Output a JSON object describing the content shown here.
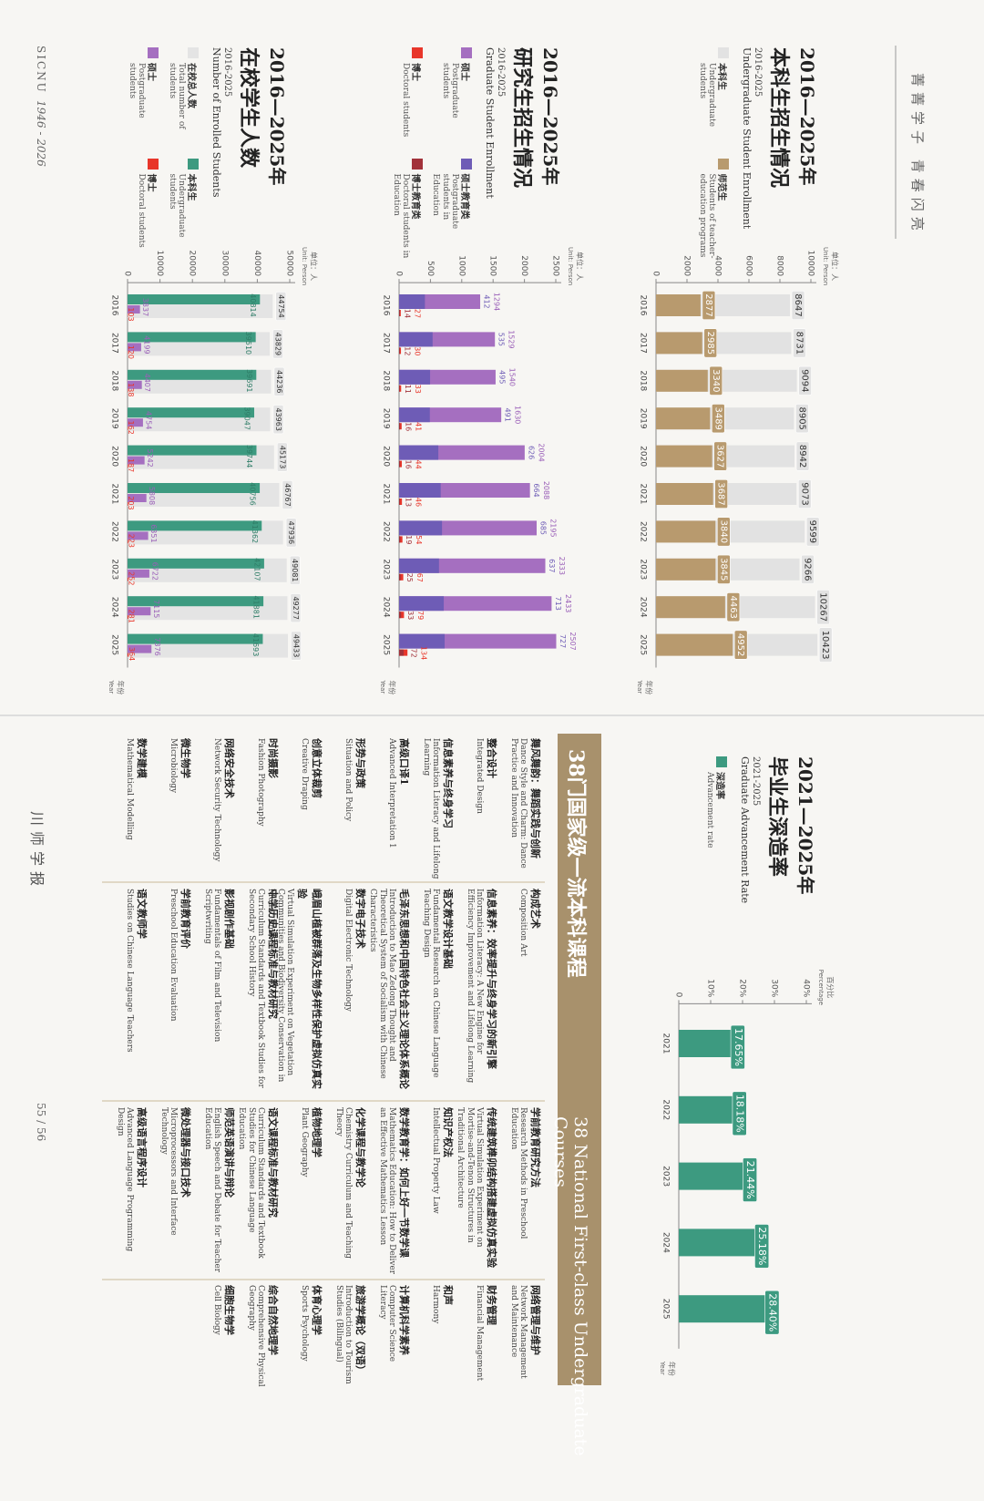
{
  "header": {
    "title": "菁菁学子 青春闪亮"
  },
  "chart_data": [
    {
      "type": "bar",
      "title_years": "2016—2025年",
      "title": "本科生招生情况",
      "subtitle": "2016-2025",
      "title_en": "Undergraduate Student Enrollment",
      "y_label": "单位：人",
      "y_label_en": "Unit: Person",
      "x_label": "年份",
      "x_label_en": "Year",
      "categories": [
        "2016",
        "2017",
        "2018",
        "2019",
        "2020",
        "2021",
        "2022",
        "2023",
        "2024",
        "2025"
      ],
      "ylim": [
        0,
        10000
      ],
      "yticks": [
        0,
        2000,
        4000,
        6000,
        8000,
        10000
      ],
      "series": [
        {
          "name": "本科生",
          "name_en": "Undergraduate students",
          "color": "#e2e2e2",
          "values": [
            8647,
            8731,
            9094,
            8905,
            8942,
            9073,
            9599,
            9266,
            10267,
            10423
          ]
        },
        {
          "name": "师范生",
          "name_en": "Students of teacher-education programs",
          "color": "#b89a6e",
          "values": [
            2877,
            2985,
            3340,
            3489,
            3627,
            3687,
            3840,
            3845,
            4463,
            4952
          ]
        }
      ]
    },
    {
      "type": "bar",
      "title_years": "2016—2025年",
      "title": "研究生招生情况",
      "subtitle": "2016-2025",
      "title_en": "Graduate Student Enrollment",
      "y_label": "单位：人",
      "y_label_en": "Unit: Person",
      "x_label": "年份",
      "x_label_en": "Year",
      "categories": [
        "2016",
        "2017",
        "2018",
        "2019",
        "2020",
        "2021",
        "2022",
        "2023",
        "2024",
        "2025"
      ],
      "ylim": [
        0,
        2500
      ],
      "yticks": [
        0,
        500,
        1000,
        1500,
        2000,
        2500
      ],
      "series": [
        {
          "name": "硕士",
          "name_en": "Postgraduate students",
          "color": "#a56fc0",
          "values": [
            1294,
            1529,
            1540,
            1630,
            2004,
            2088,
            2195,
            2333,
            2433,
            2507
          ]
        },
        {
          "name": "硕士教育类",
          "name_en": "Postgraduate students in Education",
          "color": "#6e5cb6",
          "values": [
            412,
            535,
            495,
            491,
            626,
            664,
            685,
            637,
            713,
            727
          ]
        },
        {
          "name": "博士",
          "name_en": "Doctoral students",
          "color": "#e8362a",
          "values": [
            27,
            30,
            33,
            41,
            44,
            46,
            54,
            67,
            79,
            134
          ]
        },
        {
          "name": "博士教育类",
          "name_en": "Doctoral students in Education",
          "color": "#a2323a",
          "values": [
            14,
            12,
            11,
            16,
            16,
            13,
            19,
            25,
            33,
            72
          ]
        }
      ]
    },
    {
      "type": "bar",
      "title_years": "2016—2025年",
      "title": "在校学生人数",
      "subtitle": "2016-2025",
      "title_en": "Number of Enrolled Students",
      "y_label": "单位：人",
      "y_label_en": "Unit: Person",
      "x_label": "年份",
      "x_label_en": "Year",
      "categories": [
        "2016",
        "2017",
        "2018",
        "2019",
        "2020",
        "2021",
        "2022",
        "2023",
        "2024",
        "2025"
      ],
      "ylim": [
        0,
        50000
      ],
      "yticks": [
        0,
        10000,
        20000,
        30000,
        40000,
        50000
      ],
      "series": [
        {
          "name": "在校总人数",
          "name_en": "Total number of students",
          "color": "#e4e4e4",
          "values": [
            44754,
            43829,
            44236,
            43963,
            45173,
            46767,
            47936,
            49081,
            49277,
            49433
          ]
        },
        {
          "name": "本科生",
          "name_en": "Undergraduate students",
          "color": "#3d9a80",
          "values": [
            40814,
            39510,
            39691,
            39047,
            39744,
            40756,
            41362,
            42107,
            41881,
            41693
          ]
        },
        {
          "name": "硕士",
          "name_en": "Postgraduate students",
          "color": "#a56fc0",
          "values": [
            3837,
            4199,
            4407,
            4754,
            5242,
            5808,
            6351,
            6722,
            7115,
            7376
          ]
        },
        {
          "name": "博士",
          "name_en": "Doctoral students",
          "color": "#e8362a",
          "values": [
            103,
            120,
            138,
            162,
            187,
            203,
            223,
            252,
            281,
            364
          ]
        }
      ]
    },
    {
      "type": "bar",
      "title_years": "2021—2025年",
      "title": "毕业生深造率",
      "subtitle": "2021-2025",
      "title_en": "Graduate Advancement Rate",
      "y_label": "百分比",
      "y_label_en": "Percentage",
      "x_label": "年份",
      "x_label_en": "Year",
      "categories": [
        "2021",
        "2022",
        "2023",
        "2024",
        "2025"
      ],
      "ylim": [
        0,
        40
      ],
      "yticks": [
        0,
        {
          "value": 10,
          "label": "10%"
        },
        {
          "value": 20,
          "label": "20%"
        },
        {
          "value": 30,
          "label": "30%"
        },
        {
          "value": 40,
          "label": "40%"
        }
      ],
      "series": [
        {
          "name": "深造率",
          "name_en": "Advancement rate",
          "color": "#3d9a80",
          "values": [
            17.65,
            18.18,
            21.44,
            25.18,
            28.4
          ],
          "value_labels": [
            "17.65%",
            "18.18%",
            "21.44%",
            "25.18%",
            "28.40%"
          ]
        }
      ]
    }
  ],
  "courses": {
    "title": "38门国家级一流本科课程",
    "title_en": "38 National First-class Undergraduate Courses",
    "columns": [
      [
        {
          "name": "舞风舞韵：舞蹈实践与创新",
          "name_en": "Dance Style and Charm: Dance Practice and Innovation"
        },
        {
          "name": "整合设计",
          "name_en": "Integrated Design"
        },
        {
          "name": "信息素养与终身学习",
          "name_en": "Information Literacy and Lifelong Learning"
        },
        {
          "name": "高级口译1",
          "name_en": "Advanced Interpretation 1"
        },
        {
          "name": "形势与政策",
          "name_en": "Situation and Policy"
        },
        {
          "name": "创意立体裁剪",
          "name_en": "Creative Draping"
        },
        {
          "name": "时尚摄影",
          "name_en": "Fashion Photography"
        },
        {
          "name": "网络安全技术",
          "name_en": "Network Security Technology"
        },
        {
          "name": "微生物学",
          "name_en": "Microbiology"
        },
        {
          "name": "数学建模",
          "name_en": "Mathematical Modelling"
        }
      ],
      [
        {
          "name": "构成艺术",
          "name_en": "Composition Art"
        },
        {
          "name": "信息素养：效率提升与终身学习的新引擎",
          "name_en": "Information Literacy: A New Engine for Efficiency Improvement and Lifelong Learning"
        },
        {
          "name": "语文教学设计基础",
          "name_en": "Fundamental Research on Chinese Language Teaching Design"
        },
        {
          "name": "毛泽东思想和中国特色社会主义理论体系概论",
          "name_en": "Introduction to Mao Zedong Thought and Theoretical System of Socialism with Chinese Characteristics"
        },
        {
          "name": "数字电子技术",
          "name_en": "Digital Electronic Technology"
        },
        {
          "name": "峨眉山植被群落及生物多样性保护虚拟仿真实验",
          "name_en": "Virtual Simulation Experiment on Vegetation Communities and Biodiversity Conservation in Mount Emei"
        },
        {
          "name": "中学历史课程标准与教材研究",
          "name_en": "Curriculum Standards and Textbook Studies for Secondary School History"
        },
        {
          "name": "影视剧作基础",
          "name_en": "Fundamentals of Film and Television Scriptwriting"
        },
        {
          "name": "学前教育评价",
          "name_en": "Preschool Education Evaluation"
        },
        {
          "name": "语文教师学",
          "name_en": "Studies on Chinese Language Teachers"
        }
      ],
      [
        {
          "name": "学前教育研究方法",
          "name_en": "Research Methods in Preschool Education"
        },
        {
          "name": "传统建筑榫卯结构搭建虚拟仿真实验",
          "name_en": "Virtual Simulation Experiment on Mortise-and-Tenon Structures in Traditional Architecture"
        },
        {
          "name": "知识产权法",
          "name_en": "Intellectual Property Law"
        },
        {
          "name": "数学教育学：如何上好一节数学课",
          "name_en": "Mathematics Education: How to Deliver an Effective Mathematics Lesson"
        },
        {
          "name": "化学课程与教学论",
          "name_en": "Chemistry Curriculum and Teaching Theory"
        },
        {
          "name": "植物地理学",
          "name_en": "Plant Geography"
        },
        {
          "name": "语文课程标准与教材研究",
          "name_en": "Curriculum Standards and Textbook Studies for Chinese Language Education"
        },
        {
          "name": "师范英语演讲与辩论",
          "name_en": "English Speech and Debate for Teacher Education"
        },
        {
          "name": "微处理器与接口技术",
          "name_en": "Microprocessors and Interface Technology"
        },
        {
          "name": "高级语言程序设计",
          "name_en": "Advanced Language Programming Design"
        }
      ],
      [
        {
          "name": "网络管理与维护",
          "name_en": "Network Management and Maintenance"
        },
        {
          "name": "财务管理",
          "name_en": "Financial Management"
        },
        {
          "name": "和声",
          "name_en": "Harmony"
        },
        {
          "name": "计算机科学素养",
          "name_en": "Computer Science Literacy"
        },
        {
          "name": "旅游学概论（双语）",
          "name_en": "Introduction to Tourism Studies (Bilingual)"
        },
        {
          "name": "体育心理学",
          "name_en": "Sports Psychology"
        },
        {
          "name": "综合自然地理学",
          "name_en": "Comprehensive Physical Geography"
        },
        {
          "name": "细胞生物学",
          "name_en": "Cell Biology"
        }
      ]
    ]
  },
  "footer": {
    "left": "SICNU",
    "left_years": "1946 - 2026",
    "right": "川师学报",
    "page": "55 / 56"
  }
}
